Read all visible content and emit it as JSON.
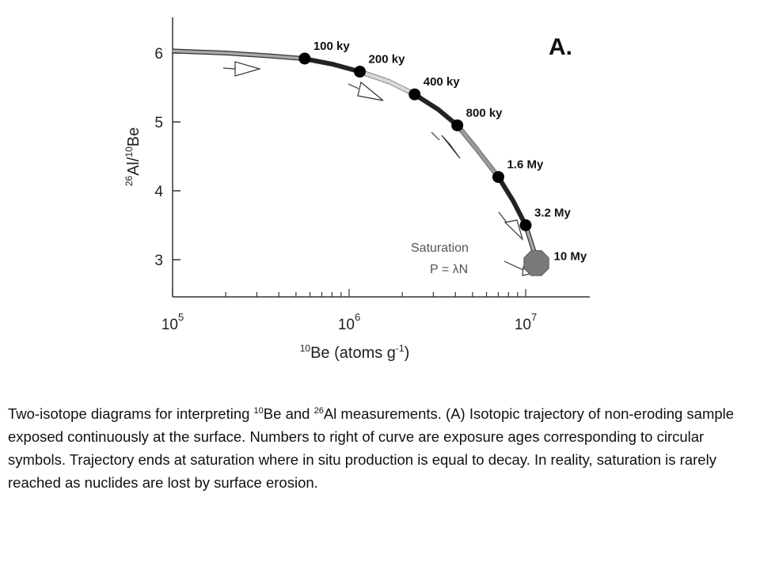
{
  "chart_data": {
    "type": "line",
    "panel_label": "A.",
    "xlabel": {
      "base": "Be (atoms g",
      "sup": "10",
      "exp": "-1",
      "close": ")"
    },
    "ylabel": {
      "sup1": "26",
      "mid": "Al/",
      "sup2": "10",
      "end": "Be"
    },
    "x_scale": "log",
    "xlim": [
      100000,
      15000000
    ],
    "ylim": [
      2.55,
      6.55
    ],
    "x_ticks": [
      {
        "value": 100000,
        "base": "10",
        "exp": "5"
      },
      {
        "value": 1000000,
        "base": "10",
        "exp": "6"
      },
      {
        "value": 10000000,
        "base": "10",
        "exp": "7"
      }
    ],
    "y_ticks": [
      {
        "value": 3,
        "label": "3"
      },
      {
        "value": 4,
        "label": "4"
      },
      {
        "value": 5,
        "label": "5"
      },
      {
        "value": 6,
        "label": "6"
      }
    ],
    "trajectory": [
      [
        100000,
        6.03
      ],
      [
        200000,
        6.0
      ],
      [
        350000,
        5.96
      ],
      [
        550000,
        5.92
      ],
      [
        800000,
        5.84
      ],
      [
        1150000,
        5.73
      ],
      [
        1700000,
        5.58
      ],
      [
        2350000,
        5.4
      ],
      [
        3200000,
        5.18
      ],
      [
        4100000,
        4.95
      ],
      [
        5300000,
        4.6
      ],
      [
        7000000,
        4.2
      ],
      [
        8500000,
        3.85
      ],
      [
        10000000,
        3.5
      ],
      [
        11200000,
        3.1
      ],
      [
        11500000,
        2.95
      ]
    ],
    "points": [
      {
        "age": "100 ky",
        "x": 560000,
        "y": 5.92
      },
      {
        "age": "200 ky",
        "x": 1150000,
        "y": 5.73
      },
      {
        "age": "400 ky",
        "x": 2350000,
        "y": 5.4
      },
      {
        "age": "800 ky",
        "x": 4100000,
        "y": 4.95
      },
      {
        "age": "1.6 My",
        "x": 7000000,
        "y": 4.2
      },
      {
        "age": "3.2 My",
        "x": 10000000,
        "y": 3.5
      }
    ],
    "saturation": {
      "age": "10 My",
      "x": 11500000,
      "y": 2.95,
      "line1": "Saturation",
      "line2": "P = λN"
    }
  },
  "caption": {
    "part1": "Two-isotope diagrams for interpreting ",
    "sup1": "10",
    "part2": "Be and ",
    "sup2": "26",
    "part3": "Al measurements. (A) Isotopic trajectory of non-eroding sample exposed continuously at the surface. Numbers to right of curve are exposure ages corresponding to circular symbols. Trajectory ends at saturation where in situ production is equal to decay. In reality, saturation is rarely reached as nuclides are lost by surface erosion."
  }
}
